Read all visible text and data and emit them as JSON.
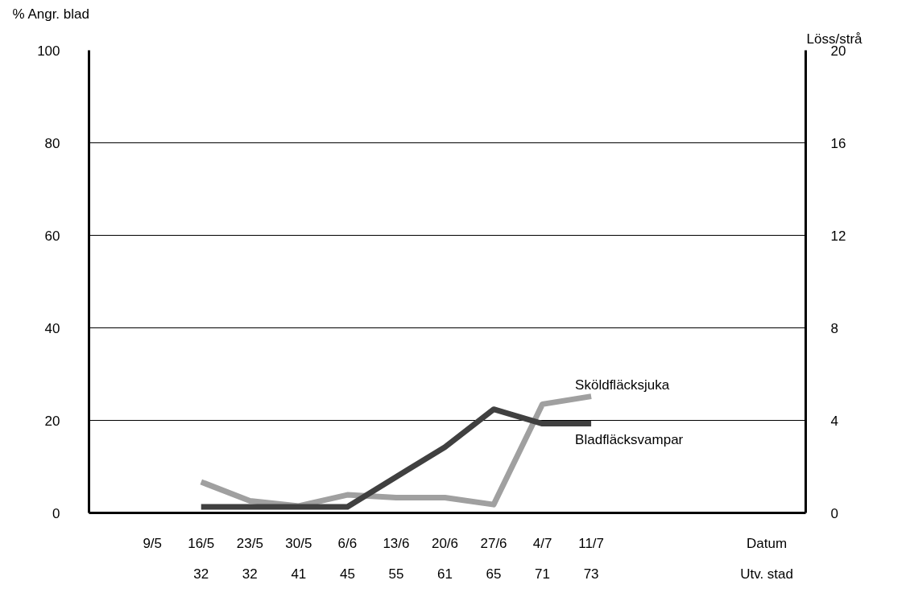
{
  "chart_data": {
    "type": "line",
    "categories": [
      "9/5",
      "16/5",
      "23/5",
      "30/5",
      "6/6",
      "13/6",
      "20/6",
      "27/6",
      "4/7",
      "11/7"
    ],
    "ylabel": "% Angr. blad",
    "ylim": [
      0,
      100
    ],
    "yticks": [
      0,
      20,
      40,
      60,
      80,
      100
    ],
    "grid": "y",
    "legend": false,
    "marker": "none",
    "line_style": "solid",
    "annotations": [
      "Löss/strå",
      "Datum",
      "Utv. stad",
      "32",
      "32",
      "41",
      "45",
      "55",
      "61",
      "65",
      "71",
      "73",
      "0",
      "4",
      "8",
      "12",
      "16",
      "20"
    ],
    "series": [
      {
        "name": "Sköldfläcksjuka",
        "color": "#a0a0a0",
        "values": [
          null,
          6.7,
          2.6,
          1.5,
          3.9,
          3.3,
          3.3,
          1.8,
          23.5,
          25.2
        ]
      },
      {
        "name": "Bladfläcksvampar",
        "color": "#404040",
        "values": [
          null,
          1.3,
          1.3,
          1.3,
          1.3,
          7.8,
          14.2,
          22.4,
          19.3,
          19.3
        ]
      }
    ]
  }
}
